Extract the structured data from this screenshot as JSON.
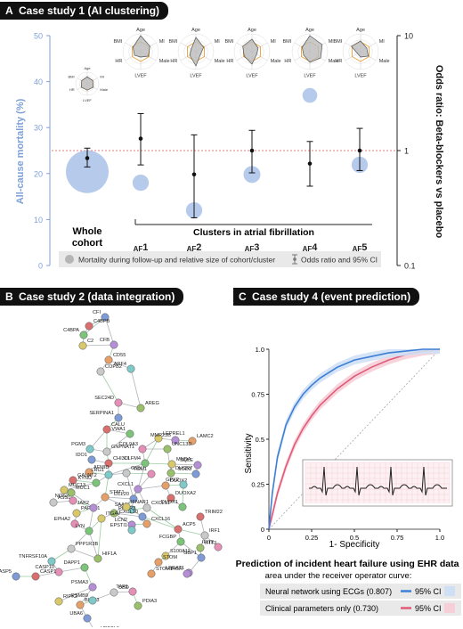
{
  "panel_a": {
    "letter": "A",
    "title": "Case study 1 (AI clustering)",
    "left_axis_label": "All-cause mortality (%)",
    "right_axis_label": "Odds ratio:  Beta-blockers vs placebo",
    "left_ticks": [
      "0",
      "10",
      "20",
      "30",
      "40",
      "50"
    ],
    "right_ticks": [
      "0.1",
      "1",
      "10"
    ],
    "cluster_bracket_label": "Clusters in atrial fibrillation",
    "whole_cohort_line1": "Whole",
    "whole_cohort_line2": "cohort",
    "cluster_prefix": "AF",
    "clusters": [
      "1",
      "2",
      "3",
      "4",
      "5"
    ],
    "legend_bubbles": "Mortality during follow-up and relative size of cohort/cluster",
    "legend_errorbar": "Odds ratio and 95% CI",
    "radar_labels": {
      "age": "Age",
      "mi": "MI",
      "bmi": "BMI",
      "hr": "HR",
      "male": "Male",
      "lvef": "LVEF"
    },
    "colors": {
      "bubble": "#a9c1e7",
      "refline": "#d9534f",
      "axis_left": "#7fa0d6"
    }
  },
  "panel_b": {
    "letter": "B",
    "title": "Case study 2 (data integration)",
    "node_labels": [
      "CFI",
      "C4BPB",
      "C4BPA",
      "C2",
      "CFB",
      "CD55",
      "ARF4",
      "COPB2",
      "SEC24D",
      "AREG",
      "SERPINA1",
      "CALU",
      "VWA1",
      "LEPREL1",
      "MMP23B",
      "LAMC2",
      "PGM3",
      "GNPNAT1",
      "COL9A3",
      "UNC13D",
      "IDO1",
      "CHI3L1",
      "OLFM4",
      "MNDA",
      "SQLE",
      "AFMID",
      "LRG1",
      "GSN",
      "TGM1",
      "DHCR7",
      "SOD3",
      "GALNT2",
      "KYNU",
      "MUC13",
      "CXCL1",
      "DUOX2",
      "GPX2",
      "ASS1",
      "NOS2",
      "MUC1",
      "CCL20",
      "DUOXA2",
      "DUOX1",
      "PAPSS1",
      "JAK2",
      "STAT1",
      "SAA1",
      "CXCL11",
      "EPHA2",
      "PIK3R3",
      "CXCL10",
      "TRIM22",
      "LYN",
      "ITGAV",
      "LCN2",
      "CXCL16",
      "EPSTI1",
      "IRF1",
      "IFIT2",
      "IFIT3",
      "GBP1",
      "ACP5",
      "FCGBP",
      "S100A11",
      "LPGAT1",
      "STOM",
      "TNFRSF10A",
      "PPP1R3B",
      "CASP10",
      "HIF1A",
      "CASP5",
      "CASP1",
      "DAPP1",
      "RIPK2",
      "PSMA3",
      "BIRC3",
      "PSMB9",
      "UBD",
      "TAP1",
      "PDIA3",
      "UBA6",
      "UBE2L6",
      "TRIM69",
      "IFNAR1",
      "PIGR",
      "STOM1"
    ]
  },
  "panel_c": {
    "letter": "C",
    "title": "Case study 4 (event prediction)",
    "y_label": "Sensitivity",
    "x_label": "1- Specificity",
    "ticks": [
      "0",
      "0.25",
      "0.5",
      "0.75",
      "1.0"
    ],
    "summary_title": "Prediction of incident heart failure using EHR data",
    "summary_subtitle": "area under the receiver operator curve:",
    "legend": [
      {
        "label": "Neural network using ECGs (0.807)",
        "ci": "95% CI",
        "color": "#3d7fd6",
        "ci_color": "#cfe0f4"
      },
      {
        "label": "Clinical parameters only (0.730)",
        "ci": "95% CI",
        "color": "#e05a79",
        "ci_color": "#f6cfd8"
      }
    ]
  },
  "chart_data": [
    {
      "type": "scatter",
      "ylabel": "All-cause mortality (%)",
      "ylim": [
        0,
        50
      ],
      "categories": [
        "Whole cohort",
        "AF1",
        "AF2",
        "AF3",
        "AF4",
        "AF5"
      ],
      "series": [
        {
          "name": "Mortality during follow-up and relative size of cohort/cluster",
          "values": [
            20.4,
            18.0,
            12.0,
            19.8,
            37.0,
            21.9
          ],
          "relative_size": [
            1.0,
            0.3,
            0.3,
            0.35,
            0.2,
            0.3
          ]
        }
      ]
    },
    {
      "type": "scatter",
      "ylabel": "Odds ratio:  Beta-blockers vs placebo",
      "scale": "log",
      "ylim": [
        0.1,
        10
      ],
      "categories": [
        "Whole cohort",
        "AF1",
        "AF2",
        "AF3",
        "AF4",
        "AF5"
      ],
      "series": [
        {
          "name": "Odds ratio and 95% CI",
          "values": [
            0.86,
            1.27,
            0.62,
            1.0,
            0.77,
            1.0
          ],
          "ci_low": [
            0.72,
            0.75,
            0.26,
            0.64,
            0.49,
            0.67
          ],
          "ci_high": [
            1.05,
            2.1,
            1.37,
            1.5,
            1.2,
            1.56
          ]
        }
      ],
      "reference_line": 1
    },
    {
      "type": "line",
      "xlabel": "1- Specificity",
      "ylabel": "Sensitivity",
      "xlim": [
        0,
        1
      ],
      "ylim": [
        0,
        1
      ],
      "series": [
        {
          "name": "Neural network using ECGs (0.807)",
          "x": [
            0,
            0.02,
            0.05,
            0.1,
            0.15,
            0.2,
            0.25,
            0.3,
            0.4,
            0.5,
            0.6,
            0.7,
            0.8,
            0.9,
            1.0
          ],
          "y": [
            0,
            0.2,
            0.4,
            0.58,
            0.68,
            0.75,
            0.8,
            0.84,
            0.9,
            0.94,
            0.96,
            0.98,
            0.99,
            1.0,
            1.0
          ]
        },
        {
          "name": "Clinical parameters only (0.730)",
          "x": [
            0,
            0.02,
            0.05,
            0.1,
            0.15,
            0.2,
            0.25,
            0.3,
            0.4,
            0.5,
            0.6,
            0.7,
            0.8,
            0.9,
            1.0
          ],
          "y": [
            0,
            0.08,
            0.2,
            0.35,
            0.47,
            0.56,
            0.63,
            0.69,
            0.78,
            0.85,
            0.9,
            0.94,
            0.97,
            0.99,
            1.0
          ]
        }
      ]
    }
  ]
}
